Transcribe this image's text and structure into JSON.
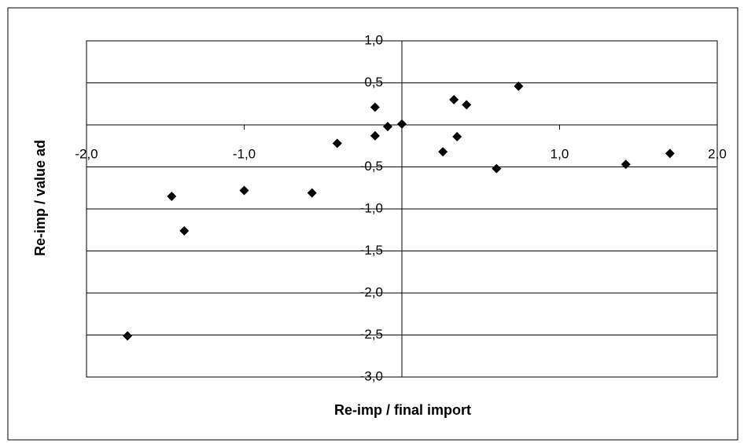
{
  "chart_data": {
    "type": "scatter",
    "xlabel": "Re-imp / final import",
    "ylabel": "Re-imp / value ad",
    "color": "#000000",
    "xlim": [
      -2,
      2
    ],
    "ylim": [
      -3,
      1
    ],
    "xticks": [
      {
        "value": -2,
        "label": "-2,0"
      },
      {
        "value": -1,
        "label": "-1,0"
      },
      {
        "value": 1,
        "label": "1,0"
      },
      {
        "value": 2,
        "label": "2,0"
      }
    ],
    "yticks": [
      {
        "value": 1,
        "label": "1,0"
      },
      {
        "value": 0.5,
        "label": "0,5"
      },
      {
        "value": -0.5,
        "label": "-0,5"
      },
      {
        "value": -1,
        "label": "-1,0"
      },
      {
        "value": -1.5,
        "label": "-1,5"
      },
      {
        "value": -2,
        "label": "-2,0"
      },
      {
        "value": -2.5,
        "label": "-2,5"
      },
      {
        "value": -3,
        "label": "-3,0"
      }
    ],
    "grid": true,
    "x": [
      -1.74,
      -1.46,
      -1.38,
      -1.0,
      -0.57,
      -0.41,
      -0.17,
      -0.17,
      -0.09,
      0.0,
      0.26,
      0.33,
      0.41,
      0.35,
      0.6,
      0.74,
      1.42,
      1.7
    ],
    "values": [
      -2.51,
      -0.85,
      -1.26,
      -0.78,
      -0.81,
      -0.22,
      0.21,
      -0.13,
      -0.02,
      0.01,
      -0.32,
      0.3,
      0.24,
      -0.14,
      -0.52,
      0.46,
      -0.47,
      -0.34
    ]
  }
}
